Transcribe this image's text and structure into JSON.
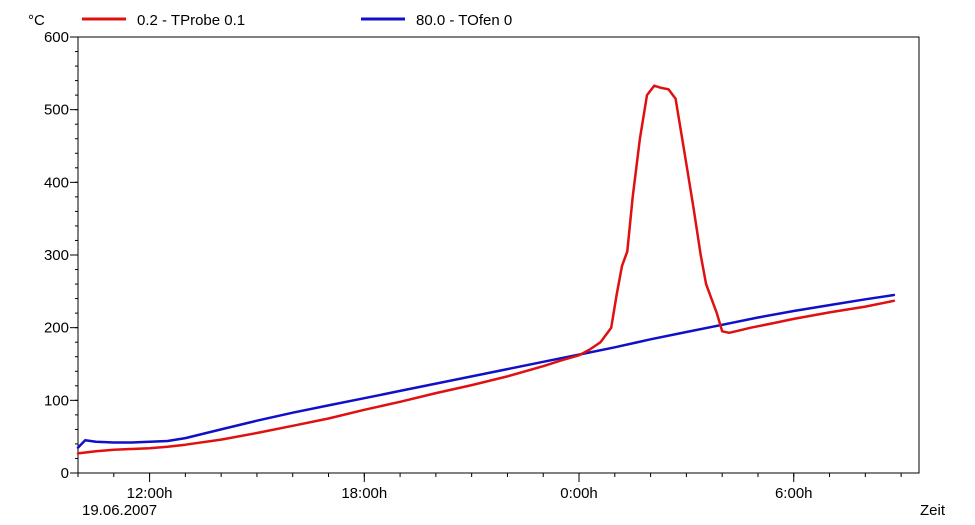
{
  "chart_data": {
    "type": "line",
    "title": "",
    "ylabel": "°C",
    "xlabel": "Zeit",
    "date_label": "19.06.2007",
    "x_unit": "hours",
    "xlim": [
      10.0,
      33.5
    ],
    "ylim": [
      0,
      600
    ],
    "y_ticks": [
      0,
      100,
      200,
      300,
      400,
      500,
      600
    ],
    "x_ticks": [
      {
        "value": 12,
        "label": "12:00h"
      },
      {
        "value": 18,
        "label": "18:00h"
      },
      {
        "value": 24,
        "label": "0:00h"
      },
      {
        "value": 30,
        "label": "6:00h"
      }
    ],
    "x_minor_step": 1,
    "y_minor_step": 20,
    "grid": false,
    "legend_position": "top",
    "series": [
      {
        "name": "0.2 - TProbe 0.1",
        "color": "#e01010",
        "x": [
          10.0,
          10.5,
          11.0,
          11.5,
          12.0,
          12.5,
          13.0,
          14.0,
          15.0,
          16.0,
          17.0,
          18.0,
          19.0,
          20.0,
          21.0,
          22.0,
          23.0,
          23.5,
          24.0,
          24.3,
          24.6,
          24.9,
          25.05,
          25.2,
          25.35,
          25.5,
          25.7,
          25.9,
          26.1,
          26.3,
          26.5,
          26.7,
          26.85,
          27.0,
          27.2,
          27.4,
          27.55,
          27.7,
          27.85,
          28.0,
          28.2,
          28.8,
          29.5,
          30.0,
          31.0,
          32.0,
          32.8
        ],
        "y": [
          27,
          30,
          32,
          33,
          34,
          36,
          39,
          46,
          55,
          65,
          75,
          87,
          98,
          110,
          121,
          133,
          147,
          155,
          162,
          170,
          180,
          200,
          245,
          285,
          305,
          380,
          460,
          520,
          533,
          530,
          528,
          515,
          470,
          425,
          365,
          300,
          260,
          240,
          220,
          195,
          193,
          200,
          207,
          212,
          221,
          229,
          237
        ]
      },
      {
        "name": "80.0 - TOfen 0",
        "color": "#1010c8",
        "x": [
          10.0,
          10.2,
          10.5,
          11.0,
          11.5,
          12.0,
          12.5,
          13.0,
          14.0,
          15.0,
          16.0,
          17.0,
          18.0,
          19.0,
          20.0,
          21.0,
          22.0,
          23.0,
          24.0,
          25.0,
          26.0,
          27.0,
          28.0,
          29.0,
          30.0,
          31.0,
          32.0,
          32.8
        ],
        "y": [
          35,
          45,
          43,
          42,
          42,
          43,
          44,
          48,
          60,
          72,
          83,
          93,
          103,
          113,
          123,
          133,
          143,
          153,
          163,
          173,
          184,
          194,
          204,
          214,
          223,
          231,
          239,
          245
        ]
      }
    ]
  }
}
